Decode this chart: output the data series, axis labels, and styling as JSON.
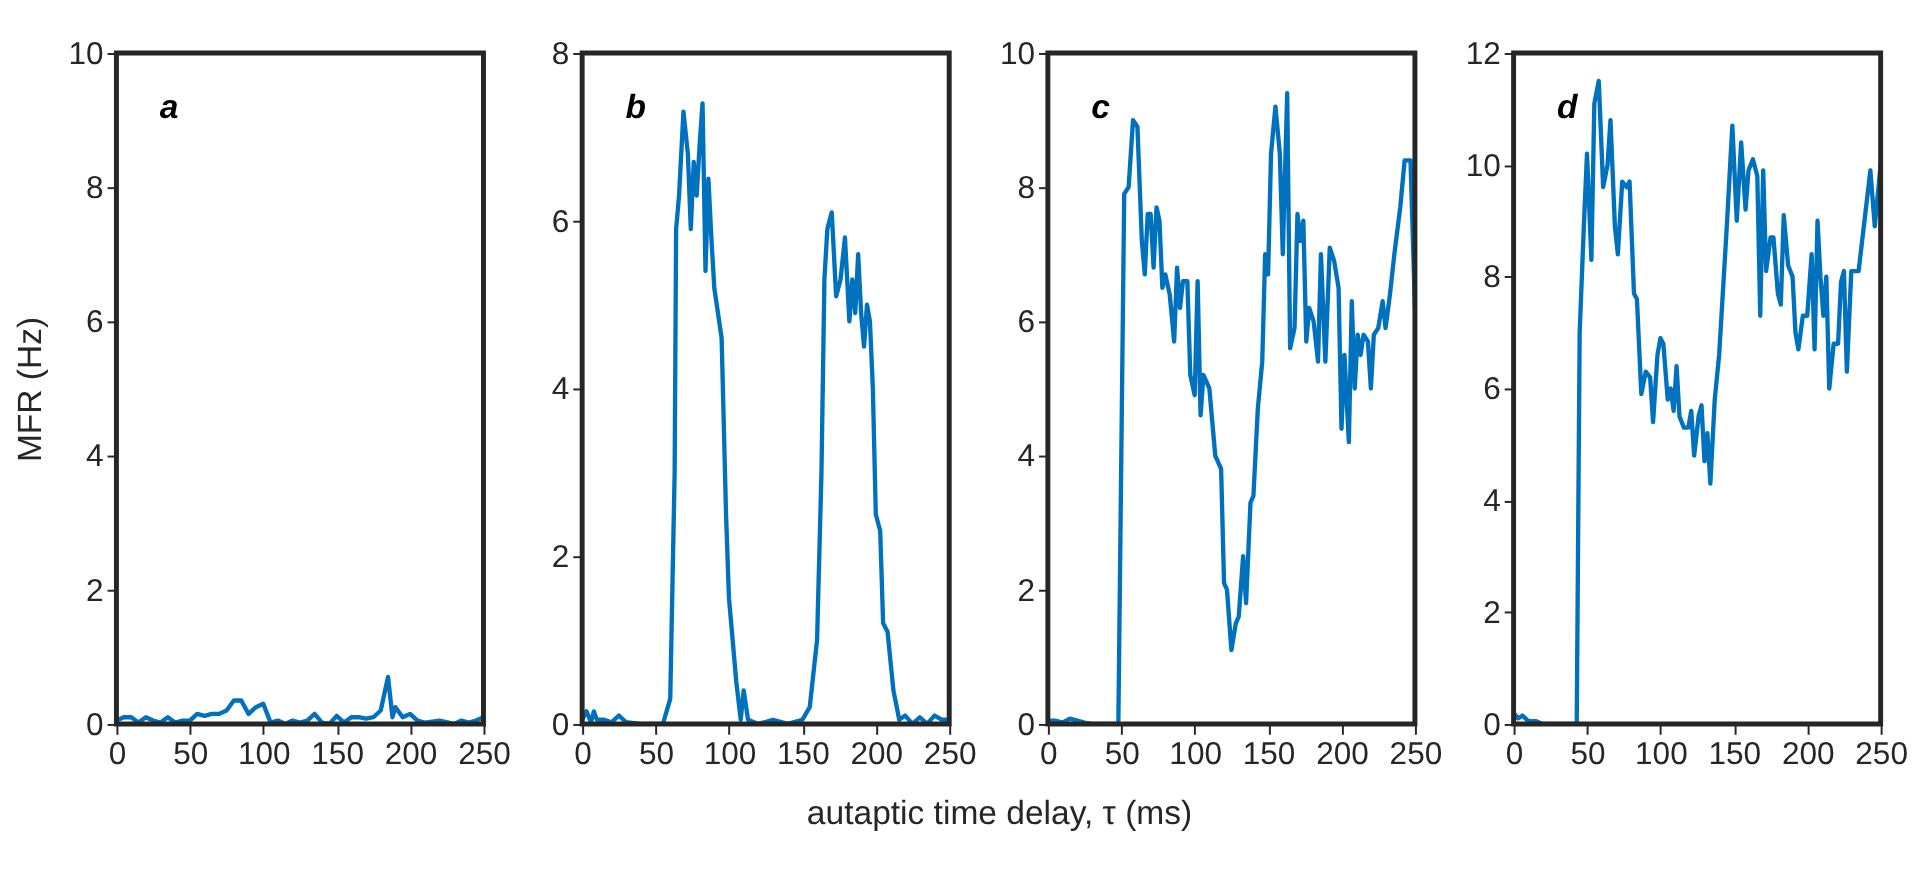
{
  "chart_data": [
    {
      "type": "line",
      "title": "a",
      "ylabel": "MFR (Hz)",
      "xlim": [
        0,
        250
      ],
      "xticks": [
        0,
        50,
        100,
        150,
        200,
        250
      ],
      "ylim": [
        0,
        10
      ],
      "yticks": [
        0,
        2,
        4,
        6,
        8,
        10
      ],
      "grid": false,
      "legend": false,
      "line_style": "solid",
      "marker": "none",
      "series": [
        {
          "color": "#0072bd",
          "x": [
            0,
            5,
            10,
            15,
            20,
            25,
            30,
            35,
            40,
            45,
            50,
            55,
            60,
            65,
            70,
            75,
            80,
            85,
            90,
            95,
            100,
            105,
            110,
            115,
            120,
            125,
            130,
            135,
            140,
            145,
            150,
            155,
            160,
            165,
            170,
            175,
            180,
            185,
            188,
            190,
            195,
            200,
            205,
            210,
            220,
            230,
            235,
            240,
            245,
            250
          ],
          "values": [
            0.05,
            0.1,
            0.1,
            0.02,
            0.1,
            0.05,
            0.02,
            0.1,
            0.02,
            0.05,
            0.05,
            0.15,
            0.12,
            0.15,
            0.15,
            0.2,
            0.35,
            0.35,
            0.15,
            0.25,
            0.3,
            0.02,
            0.05,
            0.0,
            0.05,
            0.02,
            0.05,
            0.15,
            0.02,
            0.0,
            0.12,
            0.02,
            0.1,
            0.1,
            0.08,
            0.1,
            0.2,
            0.7,
            0.1,
            0.25,
            0.1,
            0.15,
            0.05,
            0.02,
            0.05,
            0.0,
            0.05,
            0.02,
            0.05,
            0.1
          ]
        }
      ]
    },
    {
      "type": "line",
      "title": "b",
      "xlabel": "autaptic time delay, τ (ms)",
      "xlim": [
        0,
        250
      ],
      "xticks": [
        0,
        50,
        100,
        150,
        200,
        250
      ],
      "ylim": [
        0,
        8
      ],
      "yticks": [
        0,
        2,
        4,
        6,
        8
      ],
      "grid": false,
      "legend": false,
      "line_style": "solid",
      "marker": "none",
      "series": [
        {
          "color": "#0072bd",
          "x": [
            0,
            3,
            6,
            8,
            10,
            15,
            20,
            25,
            30,
            40,
            50,
            55,
            60,
            63,
            64,
            66,
            69,
            72,
            74,
            76,
            78,
            80,
            82,
            84,
            86,
            88,
            90,
            95,
            98,
            100,
            105,
            108,
            110,
            113,
            120,
            130,
            140,
            150,
            155,
            160,
            163,
            165,
            167,
            170,
            173,
            176,
            179,
            182,
            184,
            186,
            188,
            190,
            192,
            194,
            196,
            198,
            200,
            203,
            205,
            208,
            212,
            216,
            220,
            225,
            230,
            235,
            240,
            245,
            250
          ],
          "values": [
            0.05,
            0.15,
            0.02,
            0.15,
            0.05,
            0.05,
            0.02,
            0.1,
            0.02,
            0,
            0,
            0,
            0.3,
            3,
            5.9,
            6.3,
            7.3,
            6.8,
            5.9,
            6.7,
            6.3,
            6.9,
            7.4,
            5.4,
            6.5,
            5.8,
            5.2,
            4.6,
            2.5,
            1.5,
            0.5,
            0.05,
            0.4,
            0.05,
            0,
            0.05,
            0,
            0.05,
            0.2,
            1.0,
            3,
            5.3,
            5.9,
            6.1,
            5.1,
            5.3,
            5.8,
            4.8,
            5.3,
            4.9,
            5.6,
            4.9,
            4.5,
            5.0,
            4.8,
            4.0,
            2.5,
            2.3,
            1.2,
            1.1,
            0.4,
            0.05,
            0.1,
            0.0,
            0.08,
            0.0,
            0.1,
            0.05,
            0.05
          ]
        }
      ]
    },
    {
      "type": "line",
      "title": "c",
      "xlim": [
        0,
        250
      ],
      "xticks": [
        0,
        50,
        100,
        150,
        200,
        250
      ],
      "ylim": [
        0,
        10
      ],
      "yticks": [
        0,
        2,
        4,
        6,
        8,
        10
      ],
      "grid": false,
      "legend": false,
      "line_style": "solid",
      "marker": "none",
      "series": [
        {
          "color": "#0072bd",
          "x": [
            0,
            5,
            10,
            15,
            20,
            25,
            30,
            40,
            48,
            52,
            55,
            58,
            61,
            64,
            66,
            68,
            70,
            72,
            74,
            76,
            78,
            80,
            83,
            86,
            88,
            90,
            92,
            95,
            97,
            100,
            102,
            104,
            106,
            110,
            114,
            118,
            120,
            122,
            125,
            128,
            130,
            133,
            135,
            138,
            140,
            143,
            146,
            148,
            150,
            152,
            155,
            158,
            160,
            163,
            165,
            168,
            170,
            172,
            174,
            176,
            178,
            181,
            184,
            186,
            189,
            192,
            195,
            198,
            200,
            202,
            205,
            207,
            209,
            211,
            213,
            215,
            218,
            220,
            222,
            225,
            228,
            230,
            233,
            236,
            240,
            243,
            247,
            250
          ],
          "values": [
            0.05,
            0.05,
            0.02,
            0.08,
            0.05,
            0.02,
            0,
            0,
            0,
            7.9,
            8.0,
            9.0,
            8.9,
            7.2,
            6.7,
            7.6,
            7.6,
            6.8,
            7.7,
            7.5,
            6.5,
            6.7,
            6.4,
            5.7,
            6.8,
            6.2,
            6.6,
            6.6,
            5.2,
            4.9,
            6.6,
            4.6,
            5.2,
            5.0,
            4.0,
            3.8,
            2.1,
            2.0,
            1.1,
            1.5,
            1.6,
            2.5,
            1.8,
            3.3,
            3.4,
            4.7,
            5.4,
            7.0,
            6.7,
            8.5,
            9.2,
            8.5,
            7.0,
            9.4,
            5.6,
            5.9,
            7.6,
            7.2,
            7.5,
            5.7,
            6.2,
            6.0,
            5.4,
            7.0,
            5.4,
            7.1,
            6.9,
            6.5,
            4.4,
            5.5,
            4.2,
            6.3,
            5.0,
            5.8,
            5.5,
            5.8,
            5.7,
            5.0,
            5.8,
            5.9,
            6.3,
            5.9,
            6.4,
            7.0,
            7.7,
            8.4,
            8.4,
            6.2
          ]
        }
      ]
    },
    {
      "type": "line",
      "title": "d",
      "xlim": [
        0,
        250
      ],
      "xticks": [
        0,
        50,
        100,
        150,
        200,
        250
      ],
      "ylim": [
        0,
        12
      ],
      "yticks": [
        0,
        2,
        4,
        6,
        8,
        10,
        12
      ],
      "grid": false,
      "legend": false,
      "line_style": "solid",
      "marker": "none",
      "series": [
        {
          "color": "#0072bd",
          "x": [
            0,
            3,
            6,
            10,
            15,
            20,
            40,
            43,
            45,
            48,
            50,
            53,
            55,
            58,
            61,
            64,
            66,
            69,
            71,
            74,
            77,
            79,
            82,
            84,
            87,
            90,
            93,
            95,
            98,
            100,
            102,
            105,
            107,
            109,
            111,
            113,
            116,
            119,
            121,
            123,
            126,
            128,
            130,
            132,
            134,
            137,
            140,
            145,
            149,
            152,
            155,
            158,
            160,
            163,
            166,
            168,
            170,
            172,
            175,
            177,
            180,
            182,
            184,
            187,
            190,
            192,
            194,
            197,
            200,
            203,
            205,
            207,
            209,
            211,
            213,
            215,
            218,
            221,
            223,
            225,
            227,
            230,
            235,
            243,
            246,
            250
          ],
          "values": [
            0.2,
            0.1,
            0.15,
            0.05,
            0.05,
            0.0,
            0,
            0,
            7.0,
            9.0,
            10.2,
            8.3,
            11.1,
            11.5,
            9.6,
            10.0,
            10.8,
            8.9,
            8.4,
            9.7,
            9.6,
            9.7,
            7.7,
            7.6,
            5.9,
            6.3,
            6.2,
            5.4,
            6.6,
            6.9,
            6.8,
            5.8,
            6.0,
            5.6,
            6.4,
            5.5,
            5.3,
            5.3,
            5.6,
            4.8,
            5.5,
            5.7,
            4.7,
            5.2,
            4.3,
            5.8,
            6.6,
            8.8,
            10.7,
            9.0,
            10.4,
            9.2,
            9.9,
            10.1,
            9.8,
            7.3,
            9.9,
            8.1,
            8.7,
            8.7,
            7.7,
            7.5,
            9.1,
            8.2,
            8.0,
            7.0,
            6.7,
            7.3,
            7.3,
            8.4,
            6.7,
            9.0,
            8.0,
            7.3,
            8.0,
            6.0,
            6.8,
            6.8,
            7.9,
            8.1,
            6.3,
            8.1,
            8.1,
            9.9,
            8.9,
            10.0
          ]
        }
      ]
    }
  ]
}
